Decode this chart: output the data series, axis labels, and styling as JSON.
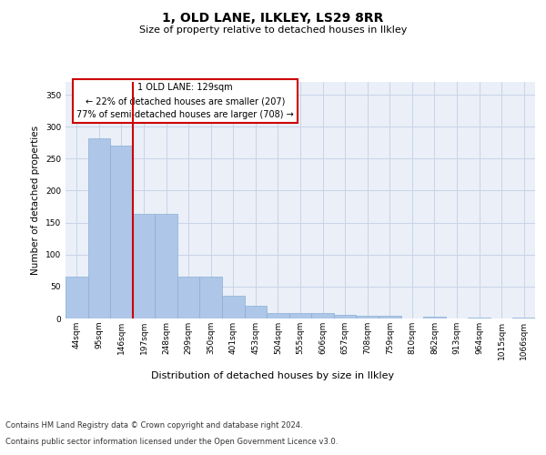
{
  "title": "1, OLD LANE, ILKLEY, LS29 8RR",
  "subtitle": "Size of property relative to detached houses in Ilkley",
  "xlabel": "Distribution of detached houses by size in Ilkley",
  "ylabel": "Number of detached properties",
  "footnote1": "Contains HM Land Registry data © Crown copyright and database right 2024.",
  "footnote2": "Contains public sector information licensed under the Open Government Licence v3.0.",
  "annotation_line1": "1 OLD LANE: 129sqm",
  "annotation_line2": "← 22% of detached houses are smaller (207)",
  "annotation_line3": "77% of semi-detached houses are larger (708) →",
  "bar_color": "#aec6e8",
  "bar_edge_color": "#89afd4",
  "vline_color": "#cc0000",
  "annotation_box_edge": "#cc0000",
  "grid_color": "#c8d4e8",
  "bg_color": "#eaeff8",
  "categories": [
    "44sqm",
    "95sqm",
    "146sqm",
    "197sqm",
    "248sqm",
    "299sqm",
    "350sqm",
    "401sqm",
    "453sqm",
    "504sqm",
    "555sqm",
    "606sqm",
    "657sqm",
    "708sqm",
    "759sqm",
    "810sqm",
    "862sqm",
    "913sqm",
    "964sqm",
    "1015sqm",
    "1066sqm"
  ],
  "values": [
    65,
    282,
    270,
    163,
    163,
    65,
    65,
    35,
    20,
    8,
    9,
    8,
    5,
    4,
    4,
    0,
    3,
    0,
    2,
    0,
    2
  ],
  "ylim": [
    0,
    370
  ],
  "yticks": [
    0,
    50,
    100,
    150,
    200,
    250,
    300,
    350
  ],
  "vline_position": 2.5,
  "title_fontsize": 10,
  "subtitle_fontsize": 8,
  "ylabel_fontsize": 7.5,
  "xlabel_fontsize": 8,
  "tick_fontsize": 6.5,
  "annotation_fontsize": 7,
  "footnote_fontsize": 6
}
